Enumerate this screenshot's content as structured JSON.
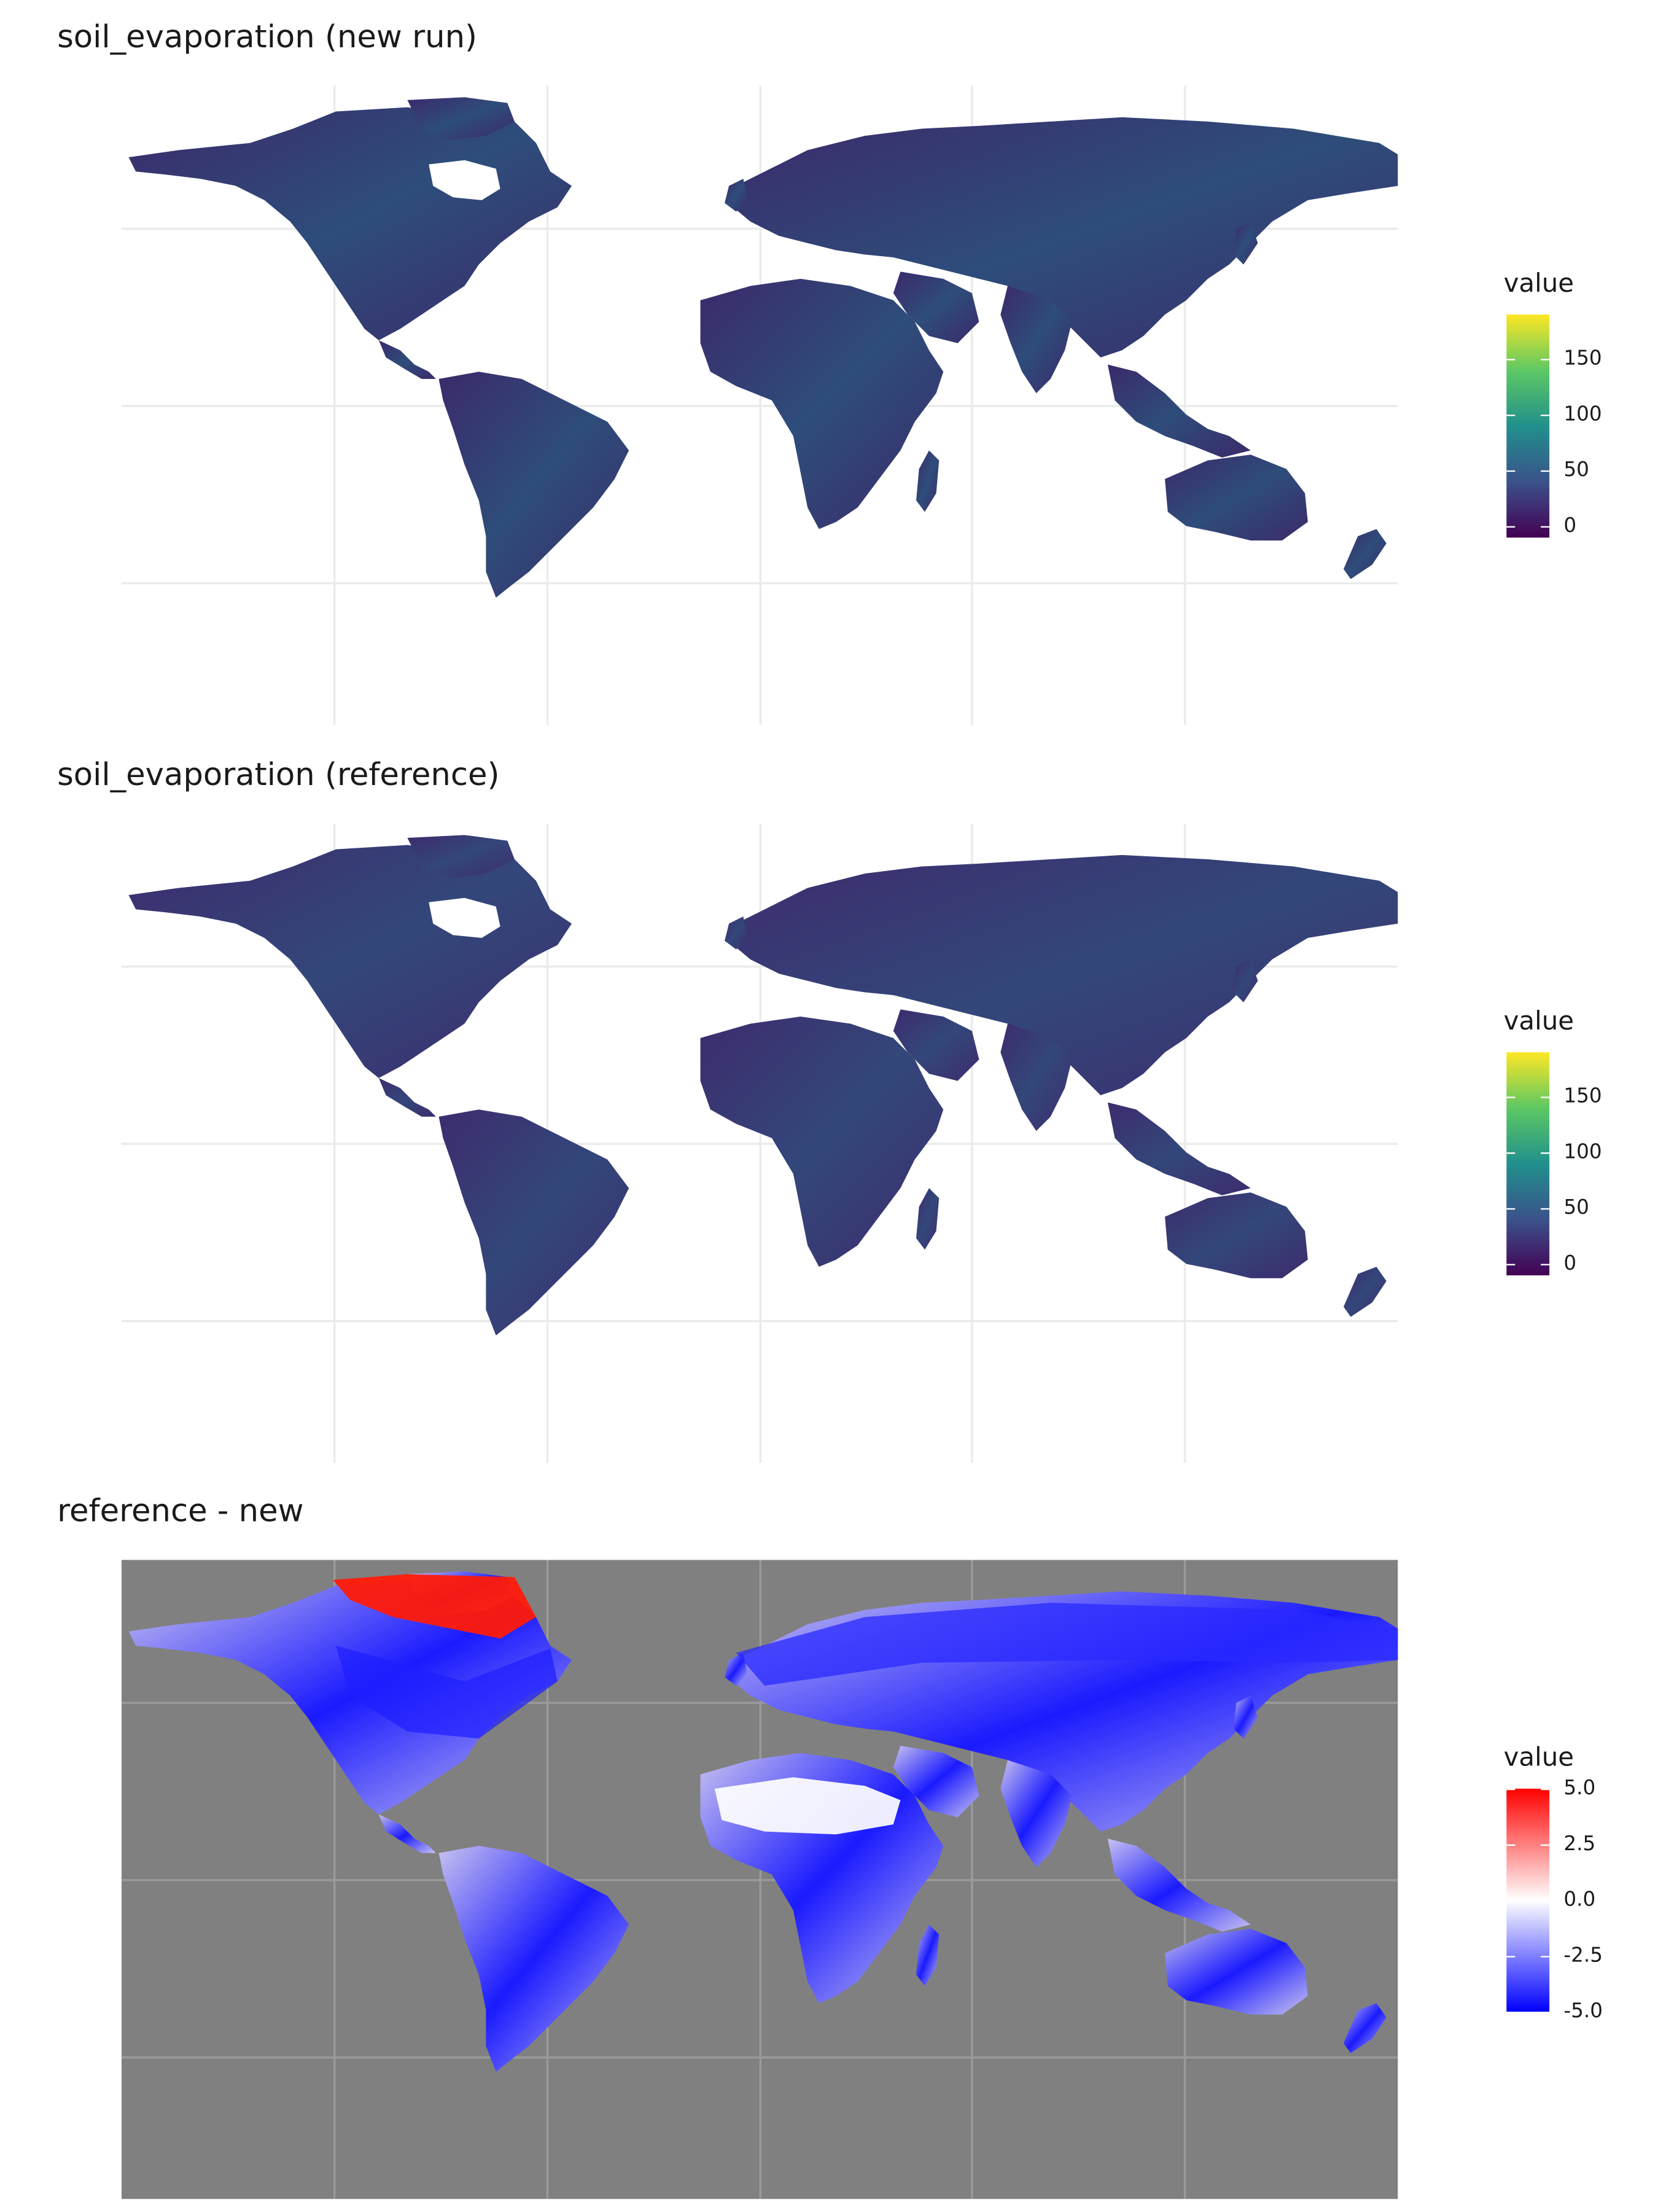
{
  "chart_data": [
    {
      "type": "heatmap",
      "title": "soil_evaporation (new run)",
      "legend": {
        "title": "value",
        "ticks": [
          "150",
          "100",
          "50",
          "0"
        ],
        "tick_values": [
          150,
          100,
          50,
          0
        ],
        "range": [
          -10,
          190
        ],
        "colormap": "viridis",
        "placement": "right"
      },
      "grid": true,
      "background": "none",
      "land_color": "#3b2a6b",
      "land_accent": "#2e4d7a"
    },
    {
      "type": "heatmap",
      "title": "soil_evaporation (reference)",
      "legend": {
        "title": "value",
        "ticks": [
          "150",
          "100",
          "50",
          "0"
        ],
        "tick_values": [
          150,
          100,
          50,
          0
        ],
        "range": [
          -10,
          190
        ],
        "colormap": "viridis",
        "placement": "right"
      },
      "grid": true,
      "background": "none",
      "land_color": "#3d2c6e",
      "land_accent": "#33477a"
    },
    {
      "type": "heatmap",
      "title": "reference - new",
      "legend": {
        "title": "value",
        "ticks": [
          "5.0",
          "2.5",
          "0.0",
          "-2.5",
          "-5.0"
        ],
        "tick_values": [
          5,
          2.5,
          0,
          -2.5,
          -5
        ],
        "range": [
          -5,
          5
        ],
        "colormap": "blue-white-red",
        "placement": "right"
      },
      "grid": true,
      "background": "#808080",
      "land_color": "#c8c2f0",
      "land_accent": "#1a1aff"
    }
  ],
  "colors": {
    "grid": "#ebebeb",
    "viridis": [
      "#440154",
      "#3b528b",
      "#21908c",
      "#5dc863",
      "#fde725"
    ],
    "diverging": [
      "#0000ff",
      "#ffffff",
      "#ff0000"
    ]
  }
}
